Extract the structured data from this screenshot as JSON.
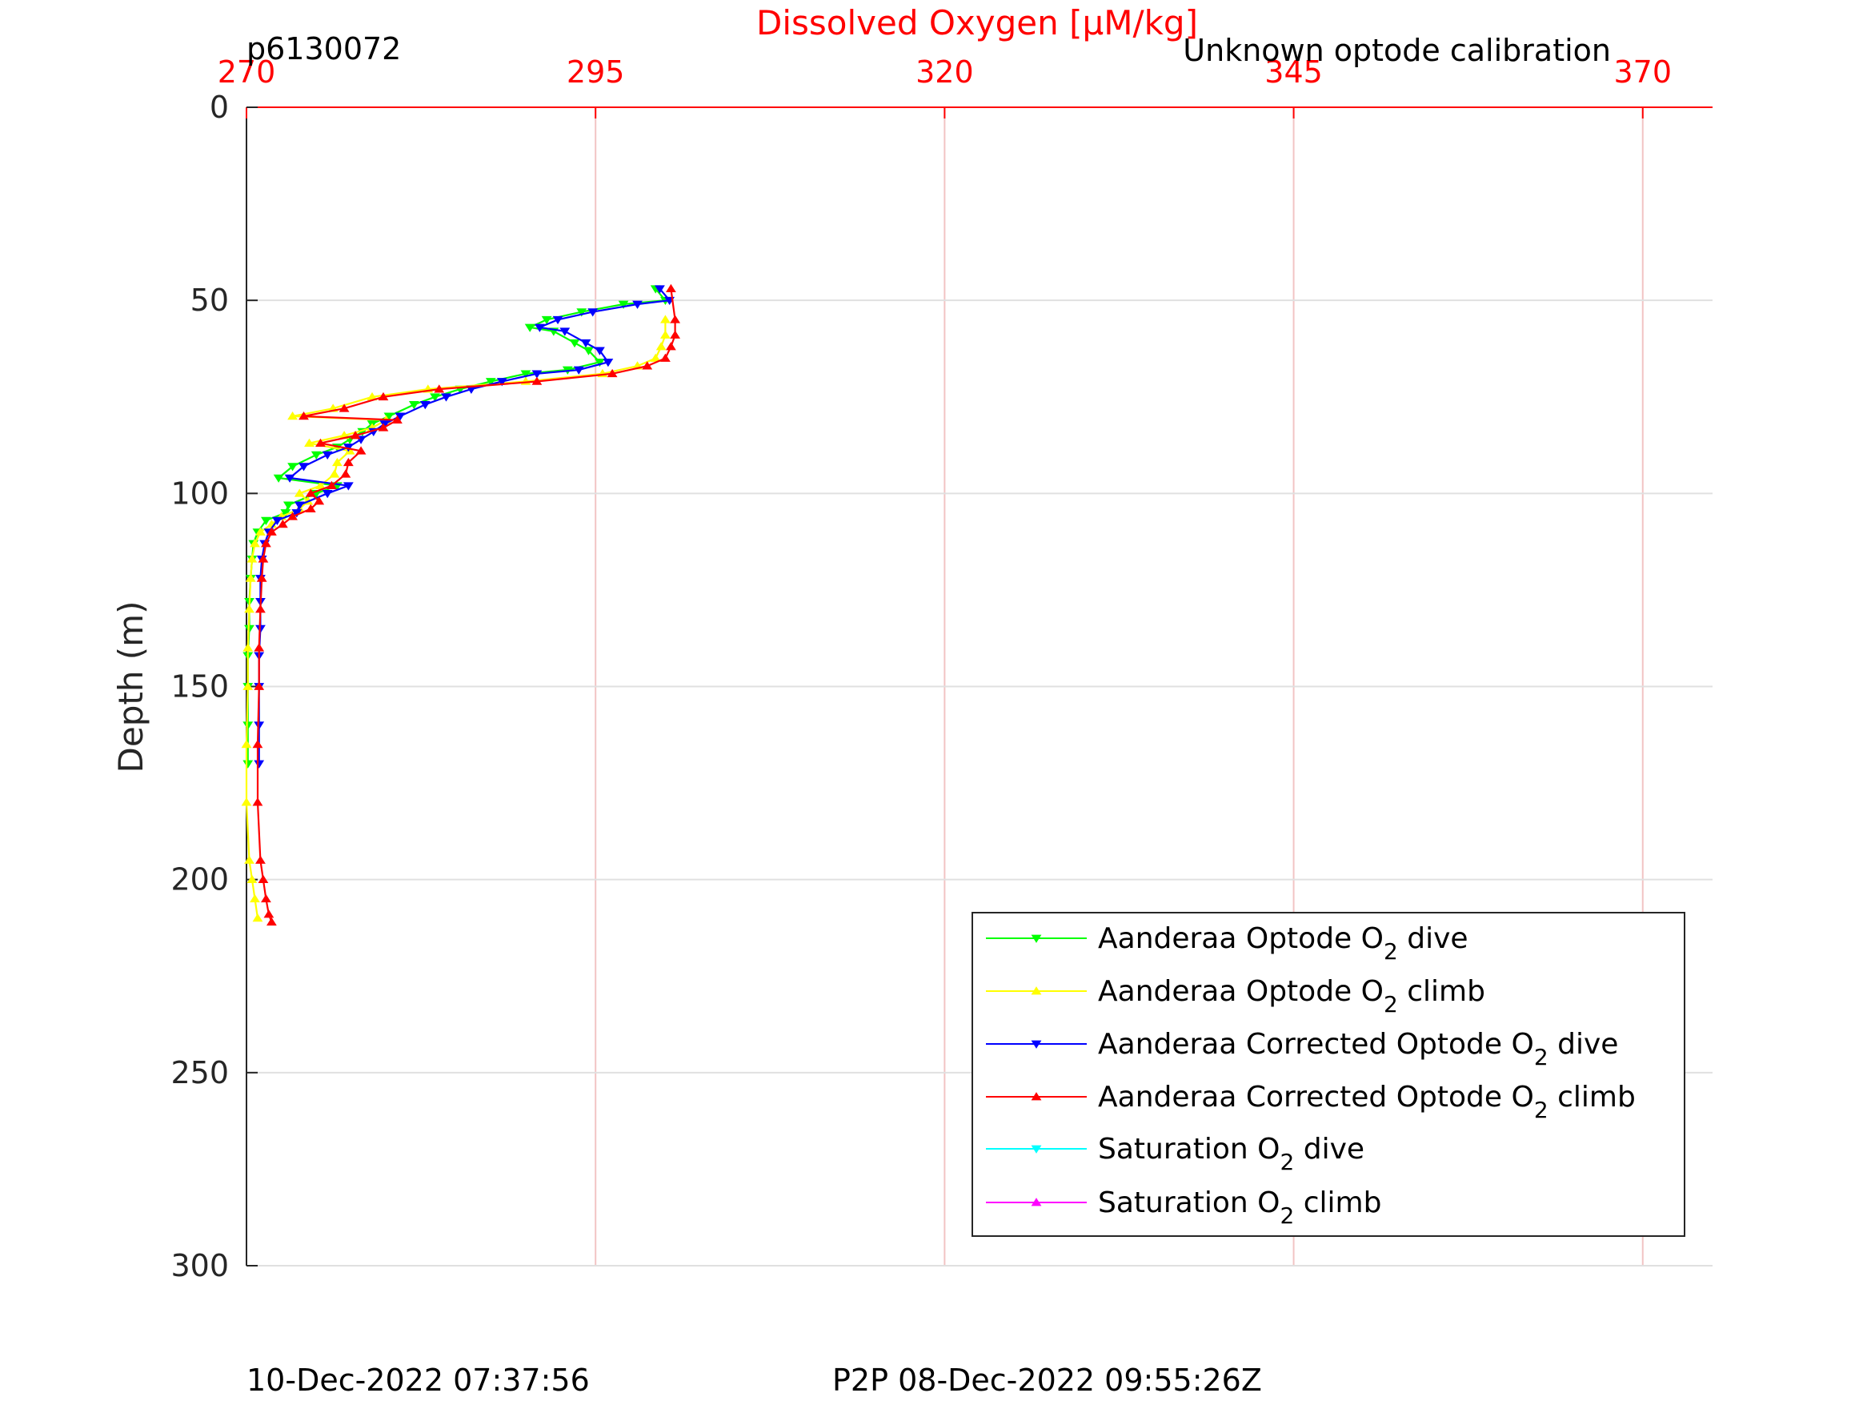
{
  "chart_data": {
    "type": "line",
    "title": "Dissolved Oxygen [μM/kg]",
    "top_left_label": "p6130072",
    "top_right_label": "Unknown optode calibration",
    "bottom_left_label": "10-Dec-2022 07:37:56",
    "bottom_center_label": "P2P 08-Dec-2022 09:55:26Z",
    "xlabel": "Dissolved Oxygen [μM/kg]",
    "ylabel": "Depth (m)",
    "xlim": [
      270,
      375
    ],
    "ylim": [
      0,
      300
    ],
    "y_reversed": true,
    "x_axis_position": "top",
    "xticks": [
      "270",
      "295",
      "320",
      "345",
      "370"
    ],
    "yticks": [
      "0",
      "50",
      "100",
      "150",
      "200",
      "250",
      "300"
    ],
    "x_grid": true,
    "y_grid": true,
    "x_grid_color": "#f2c4c4",
    "y_grid_color": "#e0e0e0",
    "legend_position": "bottom-right",
    "series": [
      {
        "name": "Aanderaa Optode O2 dive",
        "legend_main": "Aanderaa Optode O",
        "legend_sub": "2",
        "legend_tail": " dive",
        "color": "#00ff00",
        "marker": "triangle-down",
        "points": [
          [
            299.3,
            47
          ],
          [
            300,
            50
          ],
          [
            297,
            51
          ],
          [
            294,
            53
          ],
          [
            291.5,
            55
          ],
          [
            290.3,
            57
          ],
          [
            292,
            58
          ],
          [
            293.5,
            61
          ],
          [
            294.5,
            63
          ],
          [
            295.3,
            66
          ],
          [
            293,
            68
          ],
          [
            290,
            69
          ],
          [
            287.5,
            71
          ],
          [
            285.3,
            73
          ],
          [
            283.5,
            75
          ],
          [
            282,
            77
          ],
          [
            280.2,
            80
          ],
          [
            279,
            82
          ],
          [
            278.3,
            84
          ],
          [
            277.4,
            86
          ],
          [
            276.5,
            88
          ],
          [
            275,
            90
          ],
          [
            273.3,
            93
          ],
          [
            272.3,
            96
          ],
          [
            276.5,
            98
          ],
          [
            275,
            100
          ],
          [
            273,
            103
          ],
          [
            272.8,
            105
          ],
          [
            271.4,
            107
          ],
          [
            270.8,
            110
          ],
          [
            270.5,
            113
          ],
          [
            270.4,
            117
          ],
          [
            270.3,
            122
          ],
          [
            270.2,
            128
          ],
          [
            270.2,
            135
          ],
          [
            270.1,
            142
          ],
          [
            270.1,
            150
          ],
          [
            270.1,
            160
          ],
          [
            270.1,
            170
          ]
        ]
      },
      {
        "name": "Aanderaa Optode O2 climb",
        "legend_main": "Aanderaa Optode O",
        "legend_sub": "2",
        "legend_tail": " climb",
        "color": "#ffff00",
        "marker": "triangle-up",
        "points": [
          [
            300,
            55
          ],
          [
            300,
            59
          ],
          [
            299.7,
            62
          ],
          [
            299.3,
            65
          ],
          [
            298,
            67
          ],
          [
            295.5,
            69
          ],
          [
            290,
            71
          ],
          [
            283,
            73
          ],
          [
            279,
            75
          ],
          [
            276.2,
            78
          ],
          [
            273.3,
            80
          ],
          [
            280,
            81
          ],
          [
            279,
            83
          ],
          [
            277,
            85
          ],
          [
            274.5,
            87
          ],
          [
            277.4,
            89
          ],
          [
            276.5,
            92
          ],
          [
            276.3,
            95
          ],
          [
            275.3,
            98
          ],
          [
            273.8,
            100
          ],
          [
            274.4,
            102
          ],
          [
            273.8,
            104
          ],
          [
            272.5,
            106
          ],
          [
            271.8,
            108
          ],
          [
            271,
            110
          ],
          [
            270.6,
            113
          ],
          [
            270.4,
            117
          ],
          [
            270.3,
            122
          ],
          [
            270.2,
            130
          ],
          [
            270.1,
            140
          ],
          [
            270.1,
            150
          ],
          [
            270,
            165
          ],
          [
            270,
            180
          ],
          [
            270.2,
            195
          ],
          [
            270.4,
            200
          ],
          [
            270.6,
            205
          ],
          [
            270.8,
            210
          ]
        ]
      },
      {
        "name": "Aanderaa Corrected Optode O2 dive",
        "legend_main": "Aanderaa Corrected Optode O",
        "legend_sub": "2",
        "legend_tail": " dive",
        "color": "#0000ff",
        "marker": "triangle-down",
        "points": [
          [
            299.6,
            47
          ],
          [
            300.3,
            50
          ],
          [
            298,
            51
          ],
          [
            294.8,
            53
          ],
          [
            292.3,
            55
          ],
          [
            291,
            57
          ],
          [
            292.8,
            58
          ],
          [
            294.3,
            61
          ],
          [
            295.3,
            63
          ],
          [
            295.9,
            66
          ],
          [
            293.8,
            68
          ],
          [
            290.8,
            69
          ],
          [
            288.3,
            71
          ],
          [
            286.1,
            73
          ],
          [
            284.3,
            75
          ],
          [
            282.8,
            77
          ],
          [
            281,
            80
          ],
          [
            279.9,
            82
          ],
          [
            279.1,
            84
          ],
          [
            278.2,
            86
          ],
          [
            277.3,
            88
          ],
          [
            275.8,
            90
          ],
          [
            274.1,
            93
          ],
          [
            273.1,
            96
          ],
          [
            277.3,
            98
          ],
          [
            275.8,
            100
          ],
          [
            273.8,
            103
          ],
          [
            273.6,
            105
          ],
          [
            272.2,
            107
          ],
          [
            271.6,
            110
          ],
          [
            271.3,
            113
          ],
          [
            271.1,
            117
          ],
          [
            271,
            122
          ],
          [
            271,
            128
          ],
          [
            271,
            135
          ],
          [
            270.9,
            142
          ],
          [
            270.9,
            150
          ],
          [
            270.9,
            160
          ],
          [
            270.9,
            170
          ]
        ]
      },
      {
        "name": "Aanderaa Corrected Optode O2 climb",
        "legend_main": "Aanderaa Corrected Optode O",
        "legend_sub": "2",
        "legend_tail": " climb",
        "color": "#ff0000",
        "marker": "triangle-up",
        "points": [
          [
            300.4,
            47
          ],
          [
            300.7,
            55
          ],
          [
            300.7,
            59
          ],
          [
            300.4,
            62
          ],
          [
            300,
            65
          ],
          [
            298.7,
            67
          ],
          [
            296.2,
            69
          ],
          [
            290.8,
            71
          ],
          [
            283.8,
            73
          ],
          [
            279.8,
            75
          ],
          [
            277,
            78
          ],
          [
            274.1,
            80
          ],
          [
            280.8,
            81
          ],
          [
            279.8,
            83
          ],
          [
            277.8,
            85
          ],
          [
            275.3,
            87
          ],
          [
            278.2,
            89
          ],
          [
            277.3,
            92
          ],
          [
            277.1,
            95
          ],
          [
            276.1,
            98
          ],
          [
            274.6,
            100
          ],
          [
            275.2,
            102
          ],
          [
            274.6,
            104
          ],
          [
            273.3,
            106
          ],
          [
            272.6,
            108
          ],
          [
            271.8,
            110
          ],
          [
            271.4,
            113
          ],
          [
            271.2,
            117
          ],
          [
            271.1,
            122
          ],
          [
            271,
            130
          ],
          [
            270.9,
            140
          ],
          [
            270.9,
            150
          ],
          [
            270.8,
            165
          ],
          [
            270.8,
            180
          ],
          [
            271,
            195
          ],
          [
            271.2,
            200
          ],
          [
            271.4,
            205
          ],
          [
            271.6,
            209
          ],
          [
            271.8,
            211
          ]
        ]
      },
      {
        "name": "Saturation O2 dive",
        "legend_main": "Saturation O",
        "legend_sub": "2",
        "legend_tail": " dive",
        "color": "#00ffff",
        "marker": "triangle-down",
        "points": []
      },
      {
        "name": "Saturation O2 climb",
        "legend_main": "Saturation O",
        "legend_sub": "2",
        "legend_tail": " climb",
        "color": "#ff00ff",
        "marker": "triangle-up",
        "points": []
      }
    ]
  }
}
